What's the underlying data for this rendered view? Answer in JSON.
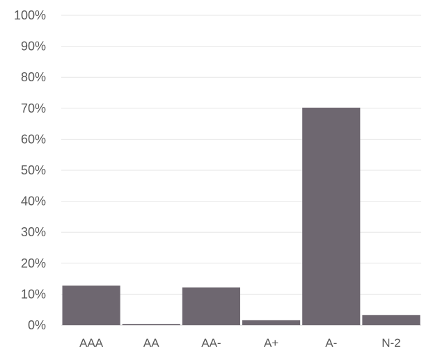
{
  "chart_data": {
    "type": "bar",
    "title": "",
    "xlabel": "",
    "ylabel": "",
    "categories": [
      "AAA",
      "AA",
      "AA-",
      "A+",
      "A-",
      "N-2"
    ],
    "values": [
      12.8,
      0.4,
      12.2,
      1.6,
      70.2,
      3.3
    ],
    "ylim": [
      0,
      100
    ],
    "y_ticks": [
      0,
      10,
      20,
      30,
      40,
      50,
      60,
      70,
      80,
      90,
      100
    ],
    "y_tick_labels": [
      "0%",
      "10%",
      "20%",
      "30%",
      "40%",
      "50%",
      "60%",
      "70%",
      "80%",
      "90%",
      "100%"
    ],
    "grid": true,
    "legend": "none",
    "bar_color": "#6e6770",
    "grid_color": "#e6e6e6"
  }
}
